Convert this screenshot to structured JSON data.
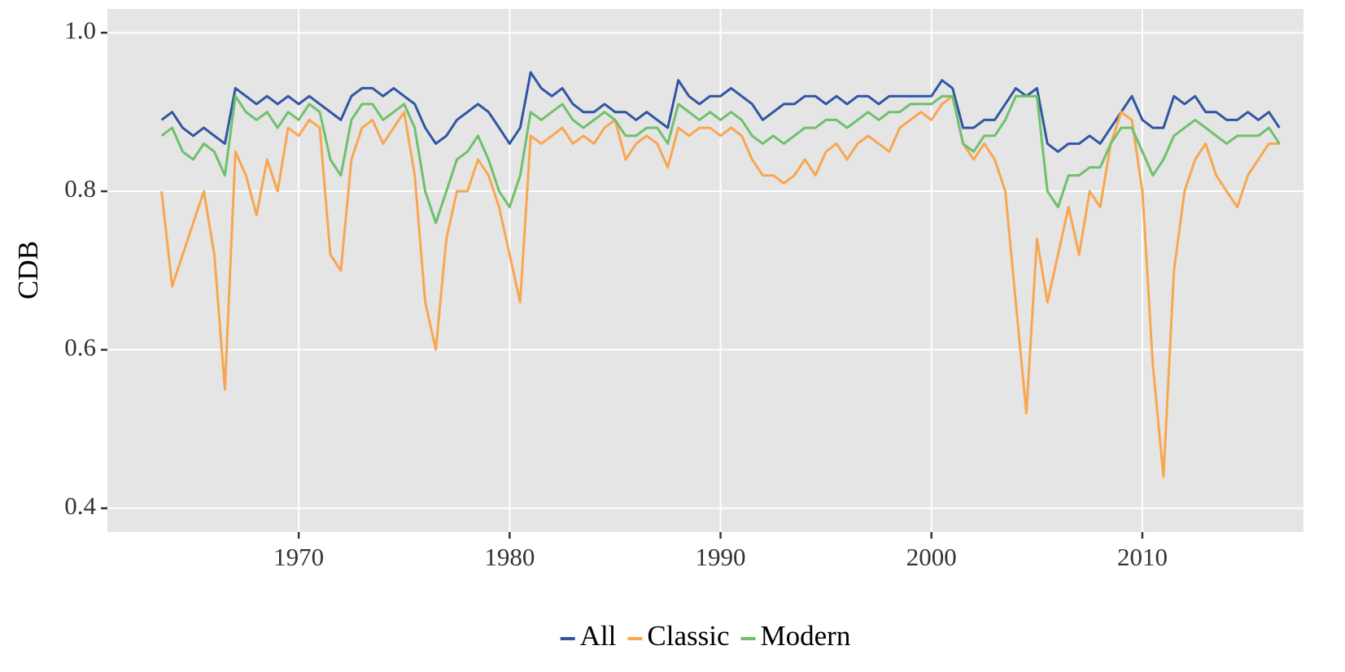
{
  "chart_data": {
    "type": "line",
    "ylabel": "CDB",
    "x": [
      1963.5,
      1964,
      1964.5,
      1965,
      1965.5,
      1966,
      1966.5,
      1967,
      1967.5,
      1968,
      1968.5,
      1969,
      1969.5,
      1970,
      1970.5,
      1971,
      1971.5,
      1972,
      1972.5,
      1973,
      1973.5,
      1974,
      1974.5,
      1975,
      1975.5,
      1976,
      1976.5,
      1977,
      1977.5,
      1978,
      1978.5,
      1979,
      1979.5,
      1980,
      1980.5,
      1981,
      1981.5,
      1982,
      1982.5,
      1983,
      1983.5,
      1984,
      1984.5,
      1985,
      1985.5,
      1986,
      1986.5,
      1987,
      1987.5,
      1988,
      1988.5,
      1989,
      1989.5,
      1990,
      1990.5,
      1991,
      1991.5,
      1992,
      1992.5,
      1993,
      1993.5,
      1994,
      1994.5,
      1995,
      1995.5,
      1996,
      1996.5,
      1997,
      1997.5,
      1998,
      1998.5,
      1999,
      1999.5,
      2000,
      2000.5,
      2001,
      2001.5,
      2002,
      2002.5,
      2003,
      2003.5,
      2004,
      2004.5,
      2005,
      2005.5,
      2006,
      2006.5,
      2007,
      2007.5,
      2008,
      2008.5,
      2009,
      2009.5,
      2010,
      2010.5,
      2011,
      2011.5,
      2012,
      2012.5,
      2013,
      2013.5,
      2014,
      2014.5,
      2015,
      2015.5,
      2016,
      2016.5
    ],
    "series": [
      {
        "name": "All",
        "color": "#2f56a3",
        "values": [
          0.89,
          0.9,
          0.88,
          0.87,
          0.88,
          0.87,
          0.86,
          0.93,
          0.92,
          0.91,
          0.92,
          0.91,
          0.92,
          0.91,
          0.92,
          0.91,
          0.9,
          0.89,
          0.92,
          0.93,
          0.93,
          0.92,
          0.93,
          0.92,
          0.91,
          0.88,
          0.86,
          0.87,
          0.89,
          0.9,
          0.91,
          0.9,
          0.88,
          0.86,
          0.88,
          0.95,
          0.93,
          0.92,
          0.93,
          0.91,
          0.9,
          0.9,
          0.91,
          0.9,
          0.9,
          0.89,
          0.9,
          0.89,
          0.88,
          0.94,
          0.92,
          0.91,
          0.92,
          0.92,
          0.93,
          0.92,
          0.91,
          0.89,
          0.9,
          0.91,
          0.91,
          0.92,
          0.92,
          0.91,
          0.92,
          0.91,
          0.92,
          0.92,
          0.91,
          0.92,
          0.92,
          0.92,
          0.92,
          0.92,
          0.94,
          0.93,
          0.88,
          0.88,
          0.89,
          0.89,
          0.91,
          0.93,
          0.92,
          0.93,
          0.86,
          0.85,
          0.86,
          0.86,
          0.87,
          0.86,
          0.88,
          0.9,
          0.92,
          0.89,
          0.88,
          0.88,
          0.92,
          0.91,
          0.92,
          0.9,
          0.9,
          0.89,
          0.89,
          0.9,
          0.89,
          0.9,
          0.88
        ]
      },
      {
        "name": "Classic",
        "color": "#f9a650",
        "values": [
          0.8,
          0.68,
          0.72,
          0.76,
          0.8,
          0.72,
          0.55,
          0.85,
          0.82,
          0.77,
          0.84,
          0.8,
          0.88,
          0.87,
          0.89,
          0.88,
          0.72,
          0.7,
          0.84,
          0.88,
          0.89,
          0.86,
          0.88,
          0.9,
          0.82,
          0.66,
          0.6,
          0.74,
          0.8,
          0.8,
          0.84,
          0.82,
          0.78,
          0.72,
          0.66,
          0.87,
          0.86,
          0.87,
          0.88,
          0.86,
          0.87,
          0.86,
          0.88,
          0.89,
          0.84,
          0.86,
          0.87,
          0.86,
          0.83,
          0.88,
          0.87,
          0.88,
          0.88,
          0.87,
          0.88,
          0.87,
          0.84,
          0.82,
          0.82,
          0.81,
          0.82,
          0.84,
          0.82,
          0.85,
          0.86,
          0.84,
          0.86,
          0.87,
          0.86,
          0.85,
          0.88,
          0.89,
          0.9,
          0.89,
          0.91,
          0.92,
          0.86,
          0.84,
          0.86,
          0.84,
          0.8,
          0.66,
          0.52,
          0.74,
          0.66,
          0.72,
          0.78,
          0.72,
          0.8,
          0.78,
          0.86,
          0.9,
          0.89,
          0.8,
          0.58,
          0.44,
          0.7,
          0.8,
          0.84,
          0.86,
          0.82,
          0.8,
          0.78,
          0.82,
          0.84,
          0.86,
          0.86
        ]
      },
      {
        "name": "Modern",
        "color": "#6fc06c",
        "values": [
          0.87,
          0.88,
          0.85,
          0.84,
          0.86,
          0.85,
          0.82,
          0.92,
          0.9,
          0.89,
          0.9,
          0.88,
          0.9,
          0.89,
          0.91,
          0.9,
          0.84,
          0.82,
          0.89,
          0.91,
          0.91,
          0.89,
          0.9,
          0.91,
          0.88,
          0.8,
          0.76,
          0.8,
          0.84,
          0.85,
          0.87,
          0.84,
          0.8,
          0.78,
          0.82,
          0.9,
          0.89,
          0.9,
          0.91,
          0.89,
          0.88,
          0.89,
          0.9,
          0.89,
          0.87,
          0.87,
          0.88,
          0.88,
          0.86,
          0.91,
          0.9,
          0.89,
          0.9,
          0.89,
          0.9,
          0.89,
          0.87,
          0.86,
          0.87,
          0.86,
          0.87,
          0.88,
          0.88,
          0.89,
          0.89,
          0.88,
          0.89,
          0.9,
          0.89,
          0.9,
          0.9,
          0.91,
          0.91,
          0.91,
          0.92,
          0.92,
          0.86,
          0.85,
          0.87,
          0.87,
          0.89,
          0.92,
          0.92,
          0.92,
          0.8,
          0.78,
          0.82,
          0.82,
          0.83,
          0.83,
          0.86,
          0.88,
          0.88,
          0.85,
          0.82,
          0.84,
          0.87,
          0.88,
          0.89,
          0.88,
          0.87,
          0.86,
          0.87,
          0.87,
          0.87,
          0.88,
          0.86
        ]
      }
    ],
    "xlim": [
      1960.93,
      2017.64
    ],
    "xticks": [
      1970,
      1980,
      1990,
      2000,
      2010
    ],
    "ylim": [
      0.37,
      1.03
    ],
    "yticks": [
      0.4,
      0.6,
      0.8,
      {
        "value": 1,
        "label": "1.0"
      }
    ],
    "grid": true,
    "legend": "bottom"
  }
}
